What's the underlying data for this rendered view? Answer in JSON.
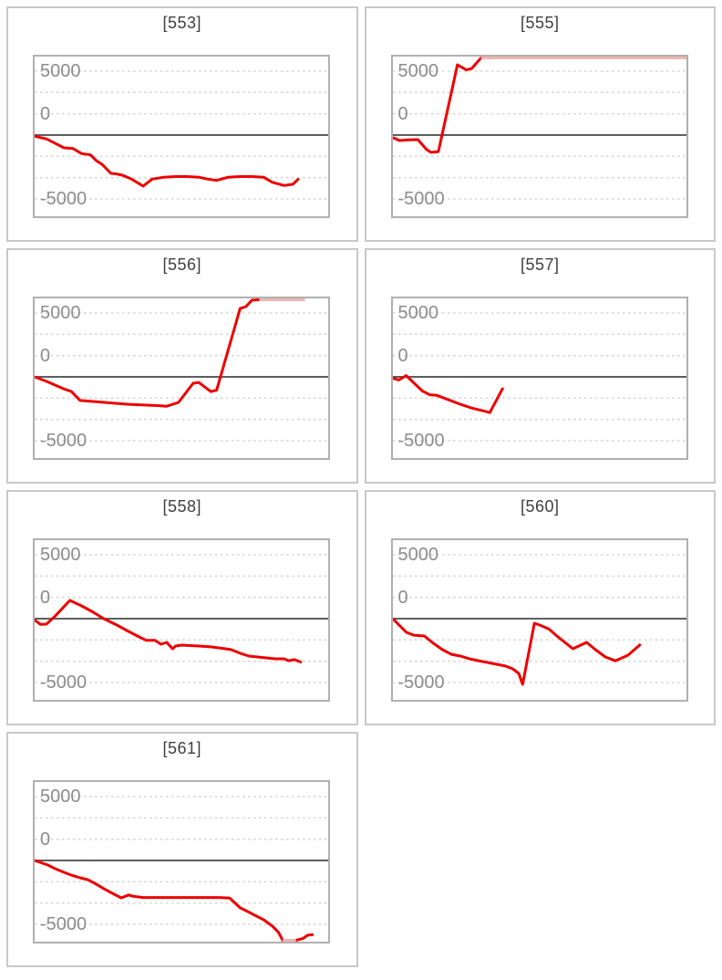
{
  "page": {
    "background": "#ffffff"
  },
  "colors": {
    "line": "#ee0000",
    "line_clipped": "#f2b4b4",
    "zero_line": "#5e5e5e",
    "gridline": "#d6d6d6",
    "plot_border": "#b0b0b0",
    "card_border": "#c8c8c8",
    "tick_label": "#8c8c8c",
    "title": "#3f3f3f"
  },
  "chart_data": [
    {
      "type": "line",
      "title": "[553]",
      "y_tick_labels": [
        "5000",
        "0",
        "-5000"
      ],
      "ylim": [
        -6500,
        6300
      ],
      "grid": "dotted horizontal every 1667",
      "legend": "none",
      "points": [
        [
          0,
          -100
        ],
        [
          0.04,
          -300
        ],
        [
          0.07,
          -650
        ],
        [
          0.1,
          -1000
        ],
        [
          0.13,
          -1050
        ],
        [
          0.16,
          -1450
        ],
        [
          0.19,
          -1550
        ],
        [
          0.21,
          -2000
        ],
        [
          0.23,
          -2300
        ],
        [
          0.26,
          -3000
        ],
        [
          0.28,
          -3050
        ],
        [
          0.3,
          -3150
        ],
        [
          0.33,
          -3450
        ],
        [
          0.37,
          -4000
        ],
        [
          0.4,
          -3450
        ],
        [
          0.44,
          -3300
        ],
        [
          0.48,
          -3250
        ],
        [
          0.52,
          -3250
        ],
        [
          0.56,
          -3300
        ],
        [
          0.59,
          -3450
        ],
        [
          0.62,
          -3550
        ],
        [
          0.66,
          -3300
        ],
        [
          0.7,
          -3250
        ],
        [
          0.74,
          -3250
        ],
        [
          0.78,
          -3300
        ],
        [
          0.81,
          -3700
        ],
        [
          0.85,
          -3950
        ],
        [
          0.88,
          -3850
        ],
        [
          0.9,
          -3400
        ]
      ]
    },
    {
      "type": "line",
      "title": "[555]",
      "y_tick_labels": [
        "5000",
        "0",
        "-5000"
      ],
      "ylim": [
        -6500,
        6300
      ],
      "grid": "dotted horizontal every 1667",
      "legend": "none",
      "points": [
        [
          0,
          -200
        ],
        [
          0.022,
          -430
        ],
        [
          0.055,
          -380
        ],
        [
          0.085,
          -360
        ],
        [
          0.115,
          -1140
        ],
        [
          0.13,
          -1360
        ],
        [
          0.155,
          -1290
        ],
        [
          0.22,
          5500
        ],
        [
          0.25,
          5100
        ],
        [
          0.268,
          5200
        ],
        [
          0.3,
          7200
        ],
        [
          1.0,
          7200
        ]
      ]
    },
    {
      "type": "line",
      "title": "[556]",
      "y_tick_labels": [
        "5000",
        "0",
        "-5000"
      ],
      "ylim": [
        -6500,
        6300
      ],
      "grid": "dotted horizontal every 1667",
      "legend": "none",
      "points": [
        [
          0,
          0
        ],
        [
          0.04,
          -350
        ],
        [
          0.1,
          -950
        ],
        [
          0.125,
          -1150
        ],
        [
          0.155,
          -1850
        ],
        [
          0.21,
          -1950
        ],
        [
          0.32,
          -2150
        ],
        [
          0.42,
          -2250
        ],
        [
          0.45,
          -2300
        ],
        [
          0.49,
          -2000
        ],
        [
          0.54,
          -500
        ],
        [
          0.56,
          -450
        ],
        [
          0.6,
          -1150
        ],
        [
          0.62,
          -1050
        ],
        [
          0.7,
          5350
        ],
        [
          0.72,
          5500
        ],
        [
          0.74,
          6000
        ],
        [
          0.765,
          7200
        ],
        [
          0.92,
          7200
        ]
      ]
    },
    {
      "type": "line",
      "title": "[557]",
      "y_tick_labels": [
        "5000",
        "0",
        "-5000"
      ],
      "ylim": [
        -6500,
        6300
      ],
      "grid": "dotted horizontal every 1667",
      "legend": "none",
      "points": [
        [
          0,
          -100
        ],
        [
          0.02,
          -250
        ],
        [
          0.045,
          100
        ],
        [
          0.1,
          -1100
        ],
        [
          0.125,
          -1400
        ],
        [
          0.15,
          -1450
        ],
        [
          0.19,
          -1800
        ],
        [
          0.23,
          -2150
        ],
        [
          0.27,
          -2450
        ],
        [
          0.315,
          -2700
        ],
        [
          0.33,
          -2800
        ],
        [
          0.375,
          -850
        ]
      ]
    },
    {
      "type": "line",
      "title": "[558]",
      "y_tick_labels": [
        "5000",
        "0",
        "-5000"
      ],
      "ylim": [
        -6500,
        6300
      ],
      "grid": "dotted horizontal every 1667",
      "legend": "none",
      "points": [
        [
          0,
          -100
        ],
        [
          0.02,
          -450
        ],
        [
          0.04,
          -430
        ],
        [
          0.07,
          200
        ],
        [
          0.12,
          1430
        ],
        [
          0.16,
          1000
        ],
        [
          0.2,
          500
        ],
        [
          0.235,
          0
        ],
        [
          0.26,
          -280
        ],
        [
          0.28,
          -500
        ],
        [
          0.32,
          -1000
        ],
        [
          0.35,
          -1360
        ],
        [
          0.38,
          -1700
        ],
        [
          0.41,
          -1700
        ],
        [
          0.43,
          -2000
        ],
        [
          0.45,
          -1860
        ],
        [
          0.47,
          -2360
        ],
        [
          0.48,
          -2140
        ],
        [
          0.5,
          -2070
        ],
        [
          0.56,
          -2140
        ],
        [
          0.6,
          -2210
        ],
        [
          0.65,
          -2360
        ],
        [
          0.67,
          -2430
        ],
        [
          0.7,
          -2710
        ],
        [
          0.73,
          -2930
        ],
        [
          0.76,
          -3000
        ],
        [
          0.79,
          -3070
        ],
        [
          0.82,
          -3140
        ],
        [
          0.85,
          -3140
        ],
        [
          0.865,
          -3290
        ],
        [
          0.885,
          -3210
        ],
        [
          0.91,
          -3430
        ]
      ]
    },
    {
      "type": "line",
      "title": "[560]",
      "y_tick_labels": [
        "5000",
        "0",
        "-5000"
      ],
      "ylim": [
        -6500,
        6300
      ],
      "grid": "dotted horizontal every 1667",
      "legend": "none",
      "points": [
        [
          0,
          0
        ],
        [
          0.015,
          -360
        ],
        [
          0.046,
          -1070
        ],
        [
          0.071,
          -1290
        ],
        [
          0.107,
          -1360
        ],
        [
          0.138,
          -1930
        ],
        [
          0.169,
          -2430
        ],
        [
          0.199,
          -2790
        ],
        [
          0.23,
          -2930
        ],
        [
          0.261,
          -3140
        ],
        [
          0.291,
          -3290
        ],
        [
          0.322,
          -3430
        ],
        [
          0.353,
          -3570
        ],
        [
          0.383,
          -3710
        ],
        [
          0.408,
          -3930
        ],
        [
          0.429,
          -4290
        ],
        [
          0.442,
          -5140
        ],
        [
          0.482,
          -360
        ],
        [
          0.5,
          -500
        ],
        [
          0.531,
          -800
        ],
        [
          0.561,
          -1400
        ],
        [
          0.613,
          -2360
        ],
        [
          0.66,
          -1860
        ],
        [
          0.69,
          -2430
        ],
        [
          0.724,
          -3000
        ],
        [
          0.758,
          -3300
        ],
        [
          0.801,
          -2860
        ],
        [
          0.844,
          -2000
        ]
      ]
    },
    {
      "type": "line",
      "title": "[561]",
      "y_tick_labels": [
        "5000",
        "0",
        "-5000"
      ],
      "ylim": [
        -6500,
        6300
      ],
      "grid": "dotted horizontal every 1667",
      "legend": "none",
      "points": [
        [
          0,
          0
        ],
        [
          0.045,
          -360
        ],
        [
          0.07,
          -640
        ],
        [
          0.1,
          -930
        ],
        [
          0.125,
          -1150
        ],
        [
          0.155,
          -1360
        ],
        [
          0.18,
          -1500
        ],
        [
          0.205,
          -1790
        ],
        [
          0.235,
          -2200
        ],
        [
          0.265,
          -2570
        ],
        [
          0.295,
          -2930
        ],
        [
          0.32,
          -2700
        ],
        [
          0.335,
          -2800
        ],
        [
          0.37,
          -2900
        ],
        [
          0.45,
          -2900
        ],
        [
          0.55,
          -2900
        ],
        [
          0.63,
          -2900
        ],
        [
          0.665,
          -2950
        ],
        [
          0.7,
          -3710
        ],
        [
          0.72,
          -3930
        ],
        [
          0.75,
          -4290
        ],
        [
          0.78,
          -4640
        ],
        [
          0.81,
          -5140
        ],
        [
          0.83,
          -5600
        ],
        [
          0.845,
          -6800
        ],
        [
          0.89,
          -6800
        ],
        [
          0.915,
          -6100
        ],
        [
          0.93,
          -5850
        ],
        [
          0.95,
          -5800
        ]
      ]
    }
  ]
}
